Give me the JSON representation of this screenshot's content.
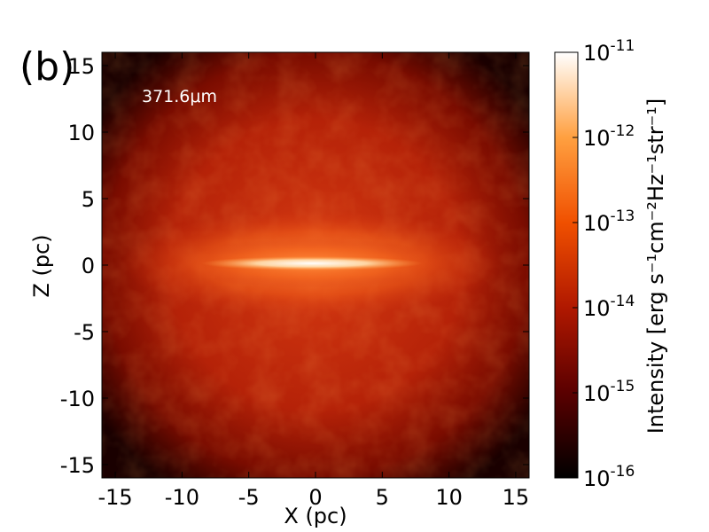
{
  "chart_data": {
    "type": "heatmap",
    "panel_label": "(b)",
    "annotation": "371.6μm",
    "xlabel": "X (pc)",
    "ylabel": "Z (pc)",
    "xlim": [
      -16,
      16
    ],
    "ylim": [
      -16,
      16
    ],
    "xticks": [
      {
        "value": -15,
        "label": "-15"
      },
      {
        "value": -10,
        "label": "-10"
      },
      {
        "value": -5,
        "label": "-5"
      },
      {
        "value": 0,
        "label": "0"
      },
      {
        "value": 5,
        "label": "5"
      },
      {
        "value": 10,
        "label": "10"
      },
      {
        "value": 15,
        "label": "15"
      }
    ],
    "yticks": [
      {
        "value": 15,
        "label": "15"
      },
      {
        "value": 10,
        "label": "10"
      },
      {
        "value": 5,
        "label": "5"
      },
      {
        "value": 0,
        "label": "0"
      },
      {
        "value": -5,
        "label": "-5"
      },
      {
        "value": -10,
        "label": "-10"
      },
      {
        "value": -15,
        "label": "-15"
      }
    ],
    "colorbar": {
      "scale": "log",
      "range": [
        1e-16,
        1e-11
      ],
      "label": "Intensity [erg s⁻¹cm⁻²Hz⁻¹str⁻¹]",
      "ticks": [
        {
          "value": 1e-11,
          "base": "10",
          "exp": "-11"
        },
        {
          "value": 1e-12,
          "base": "10",
          "exp": "-12"
        },
        {
          "value": 1e-13,
          "base": "10",
          "exp": "-13"
        },
        {
          "value": 1e-14,
          "base": "10",
          "exp": "-14"
        },
        {
          "value": 1e-15,
          "base": "10",
          "exp": "-15"
        },
        {
          "value": 1e-16,
          "base": "10",
          "exp": "-16"
        }
      ],
      "colors": [
        "#000000",
        "#5a0000",
        "#b01800",
        "#f05000",
        "#ffa040",
        "#ffffff"
      ]
    }
  }
}
